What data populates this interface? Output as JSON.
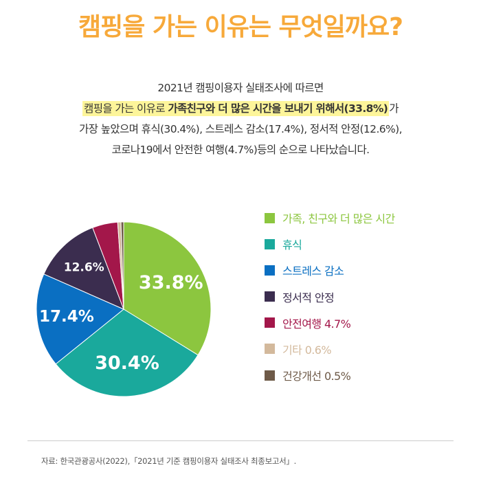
{
  "title": "캠핑을 가는 이유는 무엇일까요?",
  "intro": {
    "line1": "2021년 캠핑이용자 실태조사에 따르면",
    "line2_pre": "캠핑을 가는 이유로 ",
    "line2_bold": "가족친구와 더 많은 시간을 보내기 위해서(33.8%)",
    "line2_post": "가",
    "line3": "가장 높았으며 휴식(30.4%), 스트레스 감소(17.4%), 정서적 안정(12.6%),",
    "line4": "코로나19에서 안전한 여행(4.7%)등의 순으로 나타났습니다."
  },
  "chart_data": {
    "type": "pie",
    "unit": "%",
    "slices": [
      {
        "label": "가족, 친구와 더 많은 시간",
        "value": 33.8,
        "color": "#8cc63f",
        "display": "33.8%"
      },
      {
        "label": "휴식",
        "value": 30.4,
        "color": "#1aa99c",
        "display": "30.4%"
      },
      {
        "label": "스트레스 감소",
        "value": 17.4,
        "color": "#0a6fc2",
        "display": "17.4%"
      },
      {
        "label": "정서적 안정",
        "value": 12.6,
        "color": "#3b2d4f",
        "display": "12.6%"
      },
      {
        "label": "안전여행 4.7%",
        "value": 4.7,
        "color": "#a3174a",
        "display": ""
      },
      {
        "label": "기타 0.6%",
        "value": 0.6,
        "color": "#d3b99c",
        "display": ""
      },
      {
        "label": "건강개선 0.5%",
        "value": 0.5,
        "color": "#6e5a48",
        "display": ""
      }
    ]
  },
  "source": "자료: 한국관광공사(2022),「2021년 기준 캠핑이용자 실태조사 최종보고서」."
}
